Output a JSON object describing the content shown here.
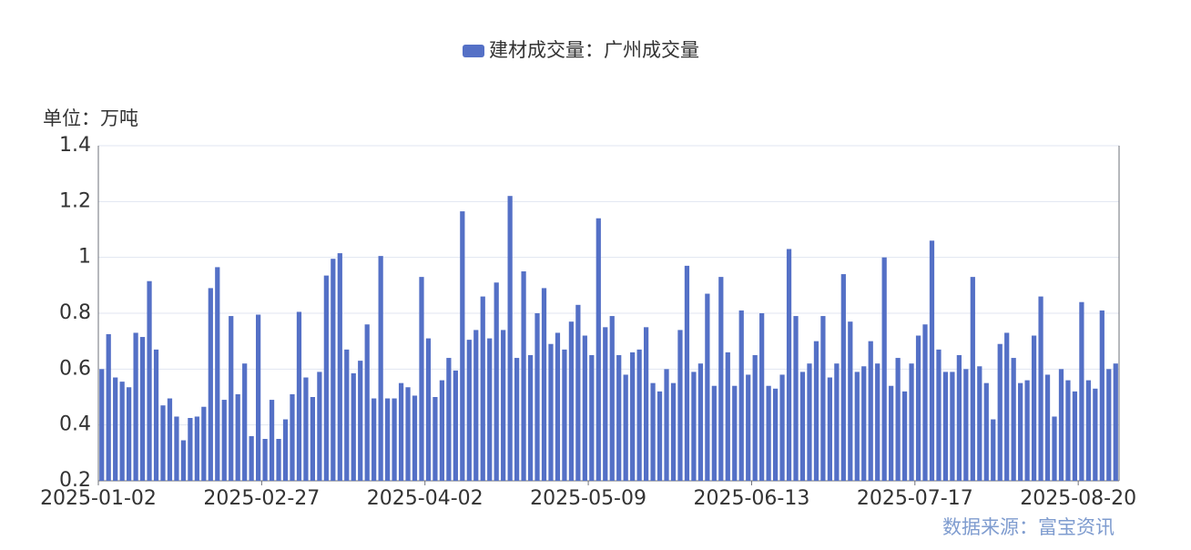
{
  "chart_data": {
    "type": "bar",
    "unit_label": "单位：万吨",
    "source": "数据来源：富宝资讯",
    "categories": [
      "2025-01-02",
      null,
      null,
      null,
      null,
      null,
      null,
      null,
      null,
      null,
      null,
      null,
      null,
      null,
      null,
      null,
      null,
      null,
      null,
      null,
      null,
      null,
      null,
      null,
      "2025-02-27",
      null,
      null,
      null,
      null,
      null,
      null,
      null,
      null,
      null,
      null,
      null,
      null,
      null,
      null,
      null,
      null,
      null,
      null,
      null,
      null,
      null,
      null,
      null,
      "2025-04-02",
      null,
      null,
      null,
      null,
      null,
      null,
      null,
      null,
      null,
      null,
      null,
      null,
      null,
      null,
      null,
      null,
      null,
      null,
      null,
      null,
      null,
      null,
      null,
      "2025-05-09",
      null,
      null,
      null,
      null,
      null,
      null,
      null,
      null,
      null,
      null,
      null,
      null,
      null,
      null,
      null,
      null,
      null,
      null,
      null,
      null,
      null,
      null,
      null,
      "2025-06-13",
      null,
      null,
      null,
      null,
      null,
      null,
      null,
      null,
      null,
      null,
      null,
      null,
      null,
      null,
      null,
      null,
      null,
      null,
      null,
      null,
      null,
      null,
      null,
      "2025-07-17",
      null,
      null,
      null,
      null,
      null,
      null,
      null,
      null,
      null,
      null,
      null,
      null,
      null,
      null,
      null,
      null,
      null,
      null,
      null,
      null,
      null,
      null,
      null,
      "2025-08-20",
      null,
      null,
      null,
      null,
      null
    ],
    "series": [
      {
        "name": "建材成交量：广州成交量",
        "color": "#5470c6",
        "values": [
          0.6,
          0.725,
          0.57,
          0.555,
          0.535,
          0.73,
          0.715,
          0.915,
          0.67,
          0.47,
          0.495,
          0.43,
          0.345,
          0.425,
          0.43,
          0.465,
          0.89,
          0.965,
          0.49,
          0.79,
          0.51,
          0.62,
          0.36,
          0.795,
          0.35,
          0.49,
          0.35,
          0.42,
          0.51,
          0.805,
          0.57,
          0.5,
          0.59,
          0.935,
          0.995,
          1.015,
          0.67,
          0.585,
          0.63,
          0.76,
          0.495,
          1.005,
          0.495,
          0.495,
          0.55,
          0.535,
          0.505,
          0.93,
          0.71,
          0.5,
          0.56,
          0.64,
          0.595,
          1.165,
          0.705,
          0.74,
          0.86,
          0.71,
          0.91,
          0.74,
          1.22,
          0.64,
          0.95,
          0.65,
          0.8,
          0.89,
          0.69,
          0.73,
          0.67,
          0.77,
          0.83,
          0.72,
          0.65,
          1.14,
          0.75,
          0.79,
          0.65,
          0.58,
          0.66,
          0.67,
          0.75,
          0.55,
          0.52,
          0.6,
          0.55,
          0.74,
          0.97,
          0.59,
          0.62,
          0.87,
          0.54,
          0.93,
          0.66,
          0.54,
          0.81,
          0.58,
          0.65,
          0.8,
          0.54,
          0.53,
          0.58,
          1.03,
          0.79,
          0.59,
          0.62,
          0.7,
          0.79,
          0.57,
          0.62,
          0.94,
          0.77,
          0.59,
          0.61,
          0.7,
          0.62,
          1.0,
          0.54,
          0.64,
          0.52,
          0.62,
          0.72,
          0.76,
          1.06,
          0.67,
          0.59,
          0.59,
          0.65,
          0.6,
          0.93,
          0.61,
          0.55,
          0.42,
          0.69,
          0.73,
          0.64,
          0.55,
          0.56,
          0.72,
          0.86,
          0.58,
          0.43,
          0.6,
          0.56,
          0.52,
          0.84,
          0.56,
          0.53,
          0.81,
          0.6,
          0.62
        ]
      }
    ],
    "ylim": [
      0.2,
      1.4
    ],
    "yticks": [
      0.2,
      0.4,
      0.6,
      0.8,
      1,
      1.2,
      1.4
    ],
    "grid": true
  }
}
